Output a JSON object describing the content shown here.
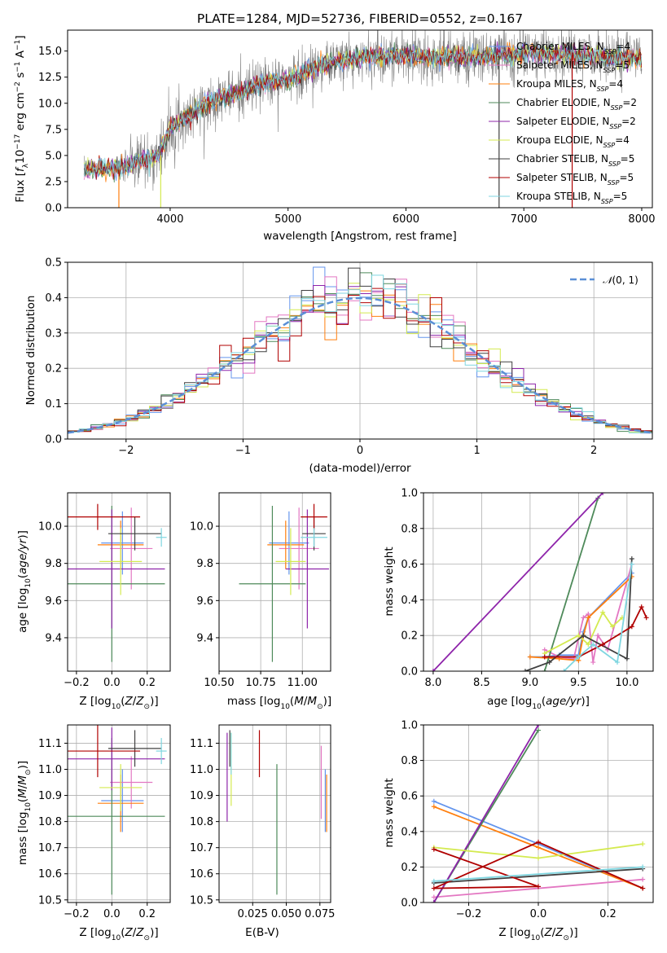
{
  "colors": {
    "Chabrier MILES": "#6495ed",
    "Salpeter MILES": "#e377c2",
    "Kroupa MILES": "#ff7f0e",
    "Chabrier ELODIE": "#4e8a5a",
    "Salpeter ELODIE": "#8e24aa",
    "Kroupa ELODIE": "#d4ea50",
    "Chabrier STELIB": "#404040",
    "Salpeter STELIB": "#b00000",
    "Kroupa STELIB": "#7fd6e0",
    "normal": "#5b8fd6",
    "data": "#808080"
  },
  "chart_data": [
    {
      "type": "line",
      "title": "PLATE=1284, MJD=52736, FIBERID=0552, z=0.167",
      "xlabel": "wavelength [Angstrom, rest frame]",
      "ylabel": "Flux [fλ10⁻¹⁷ erg cm⁻² s⁻¹ A⁻¹]",
      "xlim": [
        3130,
        8090
      ],
      "ylim": [
        0,
        17
      ],
      "xticks": [
        4000,
        5000,
        6000,
        7000,
        8000
      ],
      "yticks": [
        0.0,
        2.5,
        5.0,
        7.5,
        10.0,
        12.5,
        15.0
      ],
      "grid": false,
      "legend_position": "top-right",
      "legend": [
        {
          "name": "Chabrier MILES",
          "n": "4"
        },
        {
          "name": "Salpeter MILES",
          "n": "5"
        },
        {
          "name": "Kroupa MILES",
          "n": "4"
        },
        {
          "name": "Chabrier ELODIE",
          "n": "2"
        },
        {
          "name": "Salpeter ELODIE",
          "n": "2"
        },
        {
          "name": "Kroupa ELODIE",
          "n": "4"
        },
        {
          "name": "Chabrier STELIB",
          "n": "5"
        },
        {
          "name": "Salpeter STELIB",
          "n": "5"
        },
        {
          "name": "Kroupa STELIB",
          "n": "5"
        }
      ],
      "continuum": [
        [
          3270,
          3.6
        ],
        [
          3500,
          3.8
        ],
        [
          3700,
          4.2
        ],
        [
          3900,
          5.0
        ],
        [
          4000,
          7.6
        ],
        [
          4200,
          9.2
        ],
        [
          4400,
          10.5
        ],
        [
          4600,
          11.0
        ],
        [
          4800,
          12.0
        ],
        [
          5000,
          12.2
        ],
        [
          5200,
          13.3
        ],
        [
          5400,
          14.0
        ],
        [
          5600,
          14.3
        ],
        [
          5800,
          14.5
        ],
        [
          6000,
          14.6
        ],
        [
          6200,
          14.4
        ],
        [
          6400,
          14.5
        ],
        [
          6600,
          14.4
        ],
        [
          6800,
          14.6
        ],
        [
          7000,
          14.8
        ],
        [
          7200,
          14.8
        ],
        [
          7400,
          14.6
        ],
        [
          8000,
          14.2
        ]
      ]
    },
    {
      "type": "step",
      "xlabel": "(data-model)/error",
      "ylabel": "Normed distribution",
      "xlim": [
        -2.5,
        2.5
      ],
      "ylim": [
        0,
        0.5
      ],
      "xticks": [
        -2,
        -1,
        0,
        1,
        2
      ],
      "yticks": [
        0.0,
        0.1,
        0.2,
        0.3,
        0.4,
        0.5
      ],
      "grid": true,
      "legend_position": "top-right",
      "legend": [
        "N(0,1)"
      ],
      "bin_width": 0.1
    },
    {
      "type": "errorbar",
      "xlabel": "Z [log10(Z/Z⊙)]",
      "ylabel": "age  [log10(age/yr)]",
      "xlim": [
        -0.25,
        0.33
      ],
      "ylim": [
        9.22,
        10.18
      ],
      "xticks": [
        -0.2,
        0.0,
        0.2
      ],
      "yticks": [
        9.4,
        9.6,
        9.8,
        10.0
      ],
      "grid": true,
      "points": [
        {
          "name": "Chabrier MILES",
          "x": 0.06,
          "xerr": 0.12,
          "y": 9.91,
          "yerr": 0.17
        },
        {
          "name": "Salpeter MILES",
          "x": 0.11,
          "xerr": 0.12,
          "y": 9.88,
          "yerr": 0.22
        },
        {
          "name": "Kroupa MILES",
          "x": 0.05,
          "xerr": 0.13,
          "y": 9.9,
          "yerr": 0.13
        },
        {
          "name": "Chabrier ELODIE",
          "x": 0.0,
          "xerr": 0.3,
          "y": 9.69,
          "yerr": 0.42
        },
        {
          "name": "Salpeter ELODIE",
          "x": 0.0,
          "xerr": 0.3,
          "y": 9.77,
          "yerr": 0.32
        },
        {
          "name": "Kroupa ELODIE",
          "x": 0.05,
          "xerr": 0.12,
          "y": 9.81,
          "yerr": 0.18
        },
        {
          "name": "Chabrier STELIB",
          "x": 0.13,
          "xerr": 0.15,
          "y": 9.96,
          "yerr": 0.09
        },
        {
          "name": "Salpeter STELIB",
          "x": -0.08,
          "xerr": 0.24,
          "y": 10.05,
          "yerr": 0.07
        },
        {
          "name": "Kroupa STELIB",
          "x": 0.28,
          "xerr": 0.03,
          "y": 9.94,
          "yerr": 0.05
        }
      ]
    },
    {
      "type": "errorbar",
      "xlabel": "mass [log10(M/M⊙)]",
      "ylabel": "",
      "xlim": [
        10.5,
        11.17
      ],
      "ylim": [
        9.22,
        10.18
      ],
      "xticks": [
        10.5,
        10.75,
        11.0
      ],
      "tick_labels": [
        "10.50",
        "10.75",
        "11.00"
      ],
      "yticks": [
        9.4,
        9.6,
        9.8,
        10.0
      ],
      "grid": true,
      "points": [
        {
          "name": "Chabrier MILES",
          "x": 10.92,
          "xerr": 0.12,
          "y": 9.91,
          "yerr": 0.17
        },
        {
          "name": "Salpeter MILES",
          "x": 10.98,
          "xerr": 0.12,
          "y": 9.88,
          "yerr": 0.22
        },
        {
          "name": "Kroupa MILES",
          "x": 10.9,
          "xerr": 0.11,
          "y": 9.9,
          "yerr": 0.13
        },
        {
          "name": "Chabrier ELODIE",
          "x": 10.82,
          "xerr": 0.2,
          "y": 9.69,
          "yerr": 0.42
        },
        {
          "name": "Salpeter ELODIE",
          "x": 11.03,
          "xerr": 0.13,
          "y": 9.77,
          "yerr": 0.32
        },
        {
          "name": "Kroupa ELODIE",
          "x": 10.93,
          "xerr": 0.09,
          "y": 9.81,
          "yerr": 0.18
        },
        {
          "name": "Chabrier STELIB",
          "x": 11.07,
          "xerr": 0.07,
          "y": 9.96,
          "yerr": 0.09
        },
        {
          "name": "Salpeter STELIB",
          "x": 11.07,
          "xerr": 0.08,
          "y": 10.05,
          "yerr": 0.07
        },
        {
          "name": "Kroupa STELIB",
          "x": 11.07,
          "xerr": 0.08,
          "y": 9.94,
          "yerr": 0.05
        }
      ]
    },
    {
      "type": "line",
      "xlabel": "age  [log10(age/yr)]",
      "ylabel": "mass weight",
      "xlim": [
        7.9,
        10.27
      ],
      "ylim": [
        0,
        1.0
      ],
      "xticks": [
        8.0,
        8.5,
        9.0,
        9.5,
        10.0
      ],
      "yticks": [
        0.0,
        0.2,
        0.4,
        0.6,
        0.8,
        1.0
      ],
      "grid": true,
      "series": [
        {
          "name": "Chabrier MILES",
          "points": [
            [
              9.0,
              0.08
            ],
            [
              9.15,
              0.08
            ],
            [
              9.3,
              0.09
            ],
            [
              9.5,
              0.09
            ],
            [
              9.55,
              0.22
            ],
            [
              9.6,
              0.3
            ],
            [
              10.05,
              0.55
            ]
          ]
        },
        {
          "name": "Salpeter MILES",
          "points": [
            [
              9.15,
              0.12
            ],
            [
              9.3,
              0.08
            ],
            [
              9.45,
              0.07
            ],
            [
              9.55,
              0.3
            ],
            [
              9.6,
              0.32
            ],
            [
              9.65,
              0.05
            ],
            [
              9.7,
              0.2
            ],
            [
              9.8,
              0.12
            ],
            [
              10.05,
              0.6
            ]
          ]
        },
        {
          "name": "Kroupa MILES",
          "points": [
            [
              9.0,
              0.08
            ],
            [
              9.3,
              0.07
            ],
            [
              9.5,
              0.06
            ],
            [
              9.55,
              0.2
            ],
            [
              9.6,
              0.3
            ],
            [
              10.05,
              0.53
            ]
          ]
        },
        {
          "name": "Chabrier ELODIE",
          "points": [
            [
              9.15,
              0.0
            ],
            [
              9.7,
              0.97
            ]
          ]
        },
        {
          "name": "Salpeter ELODIE",
          "points": [
            [
              8.0,
              0.0
            ],
            [
              9.75,
              1.0
            ]
          ]
        },
        {
          "name": "Kroupa ELODIE",
          "points": [
            [
              9.15,
              0.1
            ],
            [
              9.5,
              0.2
            ],
            [
              9.6,
              0.15
            ],
            [
              9.75,
              0.33
            ],
            [
              9.85,
              0.25
            ],
            [
              9.95,
              0.3
            ]
          ]
        },
        {
          "name": "Chabrier STELIB",
          "points": [
            [
              8.95,
              0.0
            ],
            [
              9.2,
              0.05
            ],
            [
              9.55,
              0.2
            ],
            [
              10.0,
              0.07
            ],
            [
              10.05,
              0.63
            ]
          ]
        },
        {
          "name": "Salpeter STELIB",
          "points": [
            [
              9.15,
              0.08
            ],
            [
              9.5,
              0.08
            ],
            [
              9.75,
              0.15
            ],
            [
              10.05,
              0.25
            ],
            [
              10.15,
              0.36
            ],
            [
              10.2,
              0.3
            ]
          ]
        },
        {
          "name": "Kroupa STELIB",
          "points": [
            [
              9.35,
              0.0
            ],
            [
              9.5,
              0.08
            ],
            [
              9.65,
              0.15
            ],
            [
              9.9,
              0.05
            ],
            [
              10.05,
              0.6
            ]
          ]
        }
      ]
    },
    {
      "type": "errorbar",
      "xlabel": "Z [log10(Z/Z⊙)]",
      "ylabel": "mass [log10(M/M⊙)]",
      "xlim": [
        -0.25,
        0.33
      ],
      "ylim": [
        10.49,
        11.17
      ],
      "xticks": [
        -0.2,
        0.0,
        0.2
      ],
      "yticks": [
        10.5,
        10.6,
        10.7,
        10.8,
        10.9,
        11.0,
        11.1
      ],
      "grid": true,
      "points": [
        {
          "name": "Chabrier MILES",
          "x": 0.06,
          "xerr": 0.12,
          "y": 10.88,
          "yerr": 0.12
        },
        {
          "name": "Salpeter MILES",
          "x": 0.11,
          "xerr": 0.12,
          "y": 10.95,
          "yerr": 0.1
        },
        {
          "name": "Kroupa MILES",
          "x": 0.05,
          "xerr": 0.13,
          "y": 10.87,
          "yerr": 0.11
        },
        {
          "name": "Chabrier ELODIE",
          "x": 0.0,
          "xerr": 0.3,
          "y": 10.82,
          "yerr": 0.3
        },
        {
          "name": "Salpeter ELODIE",
          "x": 0.0,
          "xerr": 0.3,
          "y": 11.04,
          "yerr": 0.12
        },
        {
          "name": "Kroupa ELODIE",
          "x": 0.05,
          "xerr": 0.12,
          "y": 10.93,
          "yerr": 0.09
        },
        {
          "name": "Chabrier STELIB",
          "x": 0.13,
          "xerr": 0.15,
          "y": 11.08,
          "yerr": 0.07
        },
        {
          "name": "Salpeter STELIB",
          "x": -0.08,
          "xerr": 0.24,
          "y": 11.07,
          "yerr": 0.1
        },
        {
          "name": "Kroupa STELIB",
          "x": 0.28,
          "xerr": 0.03,
          "y": 11.07,
          "yerr": 0.05
        }
      ]
    },
    {
      "type": "errorbar",
      "xlabel": "E(B-V)",
      "ylabel": "",
      "xlim": [
        0.0,
        0.083
      ],
      "ylim": [
        10.49,
        11.17
      ],
      "xticks": [
        0.025,
        0.05,
        0.075
      ],
      "tick_labels": [
        "0.025",
        "0.050",
        "0.075"
      ],
      "yticks": [
        10.5,
        10.6,
        10.7,
        10.8,
        10.9,
        11.0,
        11.1
      ],
      "grid": true,
      "points": [
        {
          "name": "Chabrier MILES",
          "x": 0.079,
          "xerr": 0,
          "y": 10.88,
          "yerr": 0.12
        },
        {
          "name": "Salpeter MILES",
          "x": 0.076,
          "xerr": 0,
          "y": 10.95,
          "yerr": 0.14
        },
        {
          "name": "Kroupa MILES",
          "x": 0.08,
          "xerr": 0,
          "y": 10.87,
          "yerr": 0.11
        },
        {
          "name": "Chabrier ELODIE",
          "x": 0.043,
          "xerr": 0,
          "y": 10.77,
          "yerr": 0.25
        },
        {
          "name": "Salpeter ELODIE",
          "x": 0.006,
          "xerr": 0,
          "y": 10.97,
          "yerr": 0.17
        },
        {
          "name": "Kroupa ELODIE",
          "x": 0.009,
          "xerr": 0,
          "y": 11.0,
          "yerr": 0.14
        },
        {
          "name": "Chabrier STELIB",
          "x": 0.008,
          "xerr": 0,
          "y": 11.08,
          "yerr": 0.07
        },
        {
          "name": "Salpeter STELIB",
          "x": 0.03,
          "xerr": 0,
          "y": 11.06,
          "yerr": 0.09
        },
        {
          "name": "Kroupa STELIB",
          "x": 0.009,
          "xerr": 0,
          "y": 11.06,
          "yerr": 0.08
        }
      ]
    },
    {
      "type": "line",
      "xlabel": "Z [log10(Z/Z⊙)]",
      "ylabel": "mass weight",
      "xlim": [
        -0.33,
        0.33
      ],
      "ylim": [
        0,
        1.0
      ],
      "xticks": [
        -0.2,
        0.0,
        0.2
      ],
      "yticks": [
        0.0,
        0.2,
        0.4,
        0.6,
        0.8,
        1.0
      ],
      "grid": true,
      "series": [
        {
          "name": "Chabrier MILES",
          "points": [
            [
              -0.3,
              0.57
            ],
            [
              0.0,
              0.33
            ],
            [
              0.3,
              0.08
            ]
          ]
        },
        {
          "name": "Salpeter MILES",
          "points": [
            [
              -0.3,
              0.03
            ],
            [
              0.3,
              0.13
            ]
          ]
        },
        {
          "name": "Kroupa MILES",
          "points": [
            [
              -0.3,
              0.54
            ],
            [
              0.0,
              0.31
            ],
            [
              0.3,
              0.08
            ]
          ]
        },
        {
          "name": "Chabrier ELODIE",
          "points": [
            [
              -0.3,
              0.0
            ],
            [
              0.0,
              0.97
            ]
          ]
        },
        {
          "name": "Salpeter ELODIE",
          "points": [
            [
              -0.3,
              0.0
            ],
            [
              0.0,
              1.0
            ]
          ]
        },
        {
          "name": "Kroupa ELODIE",
          "points": [
            [
              -0.3,
              0.31
            ],
            [
              0.0,
              0.25
            ],
            [
              0.3,
              0.33
            ]
          ]
        },
        {
          "name": "Chabrier STELIB",
          "points": [
            [
              -0.3,
              0.11
            ],
            [
              0.3,
              0.19
            ]
          ]
        },
        {
          "name": "Salpeter STELIB",
          "points": [
            [
              -0.3,
              0.3
            ],
            [
              0.0,
              0.09
            ],
            [
              -0.3,
              0.08
            ],
            [
              0.0,
              0.34
            ],
            [
              0.3,
              0.08
            ]
          ]
        },
        {
          "name": "Kroupa STELIB",
          "points": [
            [
              -0.3,
              0.12
            ],
            [
              0.3,
              0.2
            ]
          ]
        }
      ]
    }
  ]
}
